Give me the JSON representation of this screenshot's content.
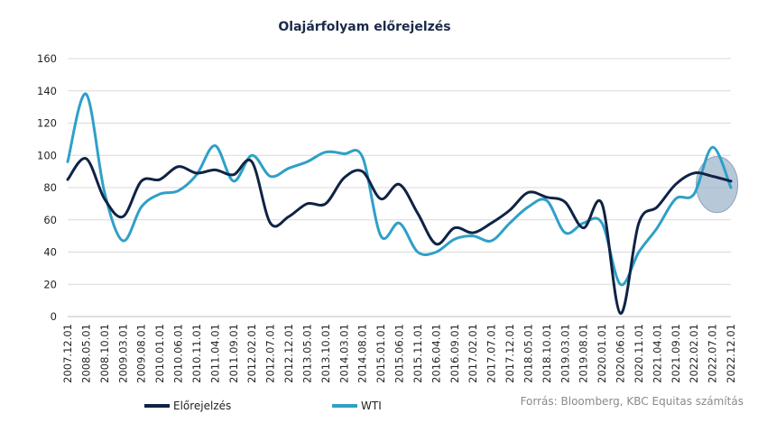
{
  "chart_data": {
    "type": "line",
    "title": "Olajárfolyam előrejelzés",
    "source": "Forrás: Bloomberg, KBC Equitas számítás",
    "ylim": [
      0,
      160
    ],
    "yticks": [
      0,
      20,
      40,
      60,
      80,
      100,
      120,
      140,
      160
    ],
    "grid": true,
    "legend_position": "bottom",
    "highlight": {
      "label": "forecast region",
      "x": "2022.07.01",
      "y": 83,
      "color": "#9fb6cc"
    },
    "categories": [
      "2007.12.01",
      "2008.05.01",
      "2008.10.01",
      "2009.03.01",
      "2009.08.01",
      "2010.01.01",
      "2010.06.01",
      "2010.11.01",
      "2011.04.01",
      "2011.09.01",
      "2012.02.01",
      "2012.07.01",
      "2012.12.01",
      "2013.05.01",
      "2013.10.01",
      "2014.03.01",
      "2014.08.01",
      "2015.01.01",
      "2015.06.01",
      "2015.11.01",
      "2016.04.01",
      "2016.09.01",
      "2017.02.01",
      "2017.07.01",
      "2017.12.01",
      "2018.05.01",
      "2018.10.01",
      "2019.03.01",
      "2019.08.01",
      "2020.01.01",
      "2020.06.01",
      "2020.11.01",
      "2021.04.01",
      "2021.09.01",
      "2022.02.01",
      "2022.07.01",
      "2022.12.01"
    ],
    "series": [
      {
        "name": "Előrejelzés",
        "color": "#0f2345",
        "values": [
          85,
          98,
          73,
          62,
          84,
          85,
          93,
          89,
          91,
          88,
          96,
          58,
          62,
          70,
          70,
          86,
          90,
          73,
          82,
          64,
          45,
          55,
          52,
          58,
          66,
          77,
          74,
          71,
          55,
          70,
          2,
          58,
          68,
          82,
          89,
          87,
          84
        ]
      },
      {
        "name": "WTI",
        "color": "#2ea0c8",
        "values": [
          96,
          138,
          77,
          47,
          68,
          76,
          78,
          88,
          106,
          84,
          100,
          87,
          92,
          96,
          102,
          101,
          99,
          50,
          58,
          40,
          40,
          48,
          50,
          47,
          58,
          68,
          72,
          52,
          58,
          58,
          20,
          40,
          55,
          73,
          76,
          105,
          80
        ]
      }
    ]
  }
}
